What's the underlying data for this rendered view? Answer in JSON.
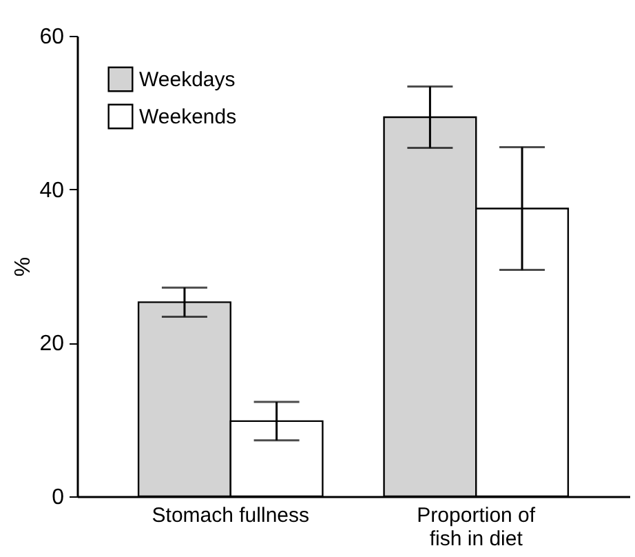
{
  "chart_data": {
    "type": "bar",
    "ylabel": "%",
    "categories": [
      "Stomach fullness",
      "Proportion of\nfish in diet"
    ],
    "series": [
      {
        "name": "Weekdays",
        "color": "#d3d3d3",
        "values": [
          25.3,
          49.4
        ],
        "errors": [
          1.9,
          4.0
        ]
      },
      {
        "name": "Weekends",
        "color": "#ffffff",
        "values": [
          9.8,
          37.5
        ],
        "errors": [
          2.5,
          8.0
        ]
      }
    ],
    "ylim": [
      0,
      60
    ],
    "yticks": [
      0,
      20,
      40,
      60
    ],
    "grid": false,
    "legend": "top left"
  }
}
